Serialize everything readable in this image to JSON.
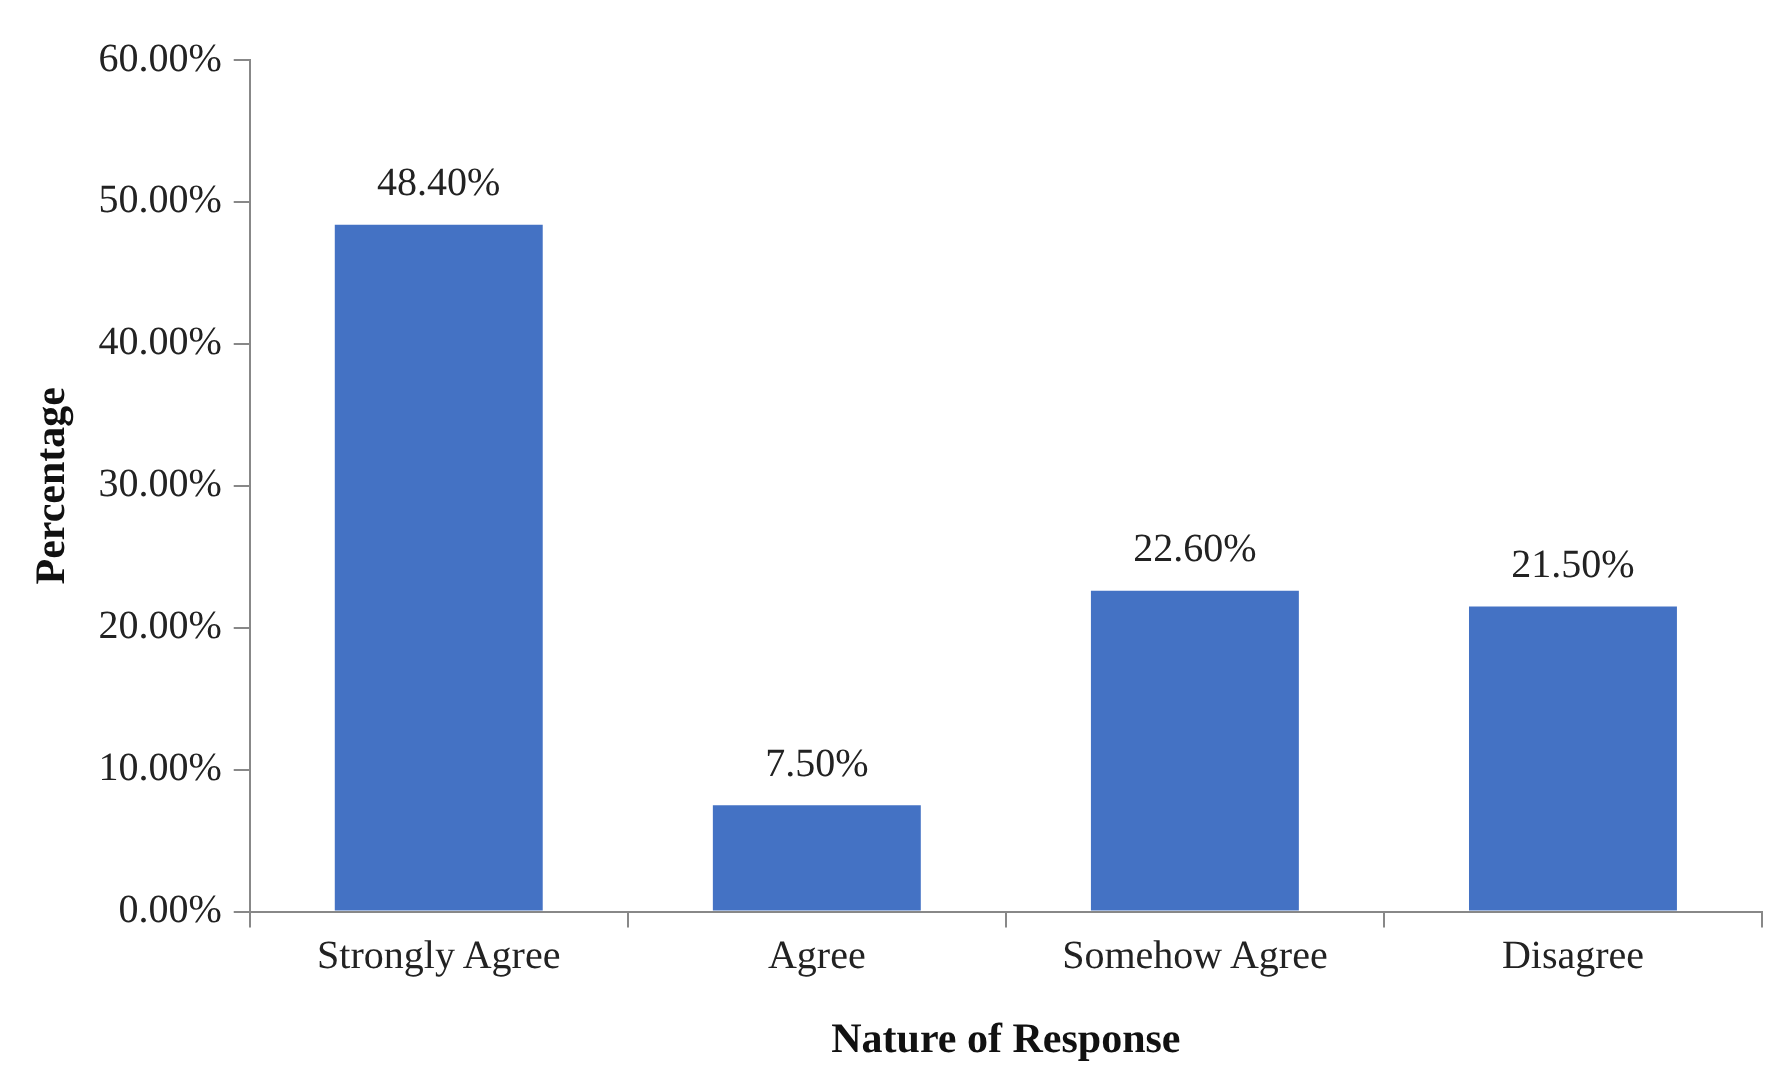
{
  "chart_data": {
    "type": "bar",
    "xlabel": "Nature of Response",
    "ylabel": "Percentage",
    "categories": [
      "Strongly Agree",
      "Agree",
      "Somehow Agree",
      "Disagree"
    ],
    "values": [
      48.4,
      7.5,
      22.6,
      21.5
    ],
    "value_labels": [
      "48.40%",
      "7.50%",
      "22.60%",
      "21.50%"
    ],
    "color": "#4472c4",
    "ylim": [
      0,
      60
    ],
    "yticks": [
      {
        "value": 0,
        "label": "0.00%"
      },
      {
        "value": 10,
        "label": "10.00%"
      },
      {
        "value": 20,
        "label": "20.00%"
      },
      {
        "value": 30,
        "label": "30.00%"
      },
      {
        "value": 40,
        "label": "40.00%"
      },
      {
        "value": 50,
        "label": "50.00%"
      },
      {
        "value": 60,
        "label": "60.00%"
      }
    ],
    "grid": false,
    "legend": false
  }
}
